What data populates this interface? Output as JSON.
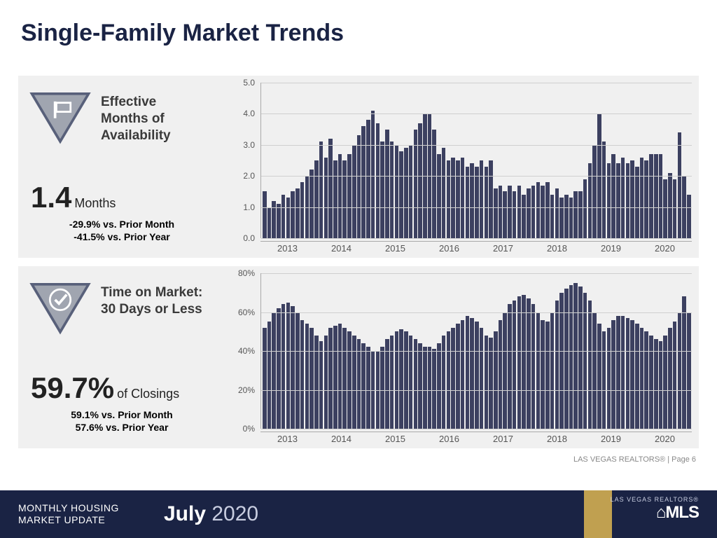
{
  "page": {
    "title": "Single-Family Market Trends",
    "title_color": "#1a2344",
    "title_fontsize": 34,
    "attribution": "LAS VEGAS REALTORS® | Page 6",
    "background_color": "#ffffff",
    "panel_background": "#f0f0f0"
  },
  "footer": {
    "line1": "MONTHLY HOUSING",
    "line2": "MARKET UPDATE",
    "month": "July",
    "year": "2020",
    "brand_small": "LAS VEGAS REALTORS®",
    "brand_large": "⌂MLS",
    "bg_color": "#1a2344",
    "accent_color": "#c0a050"
  },
  "metric1": {
    "icon": "sign-icon",
    "title_l1": "Effective",
    "title_l2": "Months of",
    "title_l3": "Availability",
    "big_value": "1.4",
    "big_unit": "Months",
    "sub1": "-29.9% vs. Prior Month",
    "sub2": "-41.5% vs. Prior Year",
    "chart": {
      "type": "bar",
      "bar_color": "#3c4060",
      "grid_color": "#cfcfcf",
      "background": "#f0f0f0",
      "ymin": 0,
      "ymax": 5,
      "ytick_step": 1,
      "ytick_labels": [
        "0.0",
        "1.0",
        "2.0",
        "3.0",
        "4.0",
        "5.0"
      ],
      "x_labels": [
        "2013",
        "2014",
        "2015",
        "2016",
        "2017",
        "2018",
        "2019",
        "2020"
      ],
      "values": [
        1.5,
        1.0,
        1.2,
        1.1,
        1.4,
        1.3,
        1.5,
        1.6,
        1.8,
        2.0,
        2.2,
        2.5,
        3.1,
        2.6,
        3.2,
        2.5,
        2.7,
        2.5,
        2.7,
        3.0,
        3.3,
        3.6,
        3.8,
        4.1,
        3.7,
        3.1,
        3.5,
        3.1,
        3.0,
        2.8,
        2.9,
        3.0,
        3.5,
        3.7,
        4.0,
        4.0,
        3.5,
        2.7,
        2.9,
        2.5,
        2.6,
        2.5,
        2.6,
        2.3,
        2.4,
        2.3,
        2.5,
        2.3,
        2.5,
        1.6,
        1.7,
        1.5,
        1.7,
        1.5,
        1.7,
        1.4,
        1.6,
        1.7,
        1.8,
        1.7,
        1.8,
        1.4,
        1.6,
        1.3,
        1.4,
        1.3,
        1.5,
        1.5,
        1.9,
        2.4,
        3.0,
        4.0,
        3.1,
        2.4,
        2.7,
        2.4,
        2.6,
        2.4,
        2.5,
        2.3,
        2.6,
        2.5,
        2.7,
        2.7,
        2.7,
        1.9,
        2.1,
        1.9,
        3.4,
        2.0,
        1.4
      ]
    }
  },
  "metric2": {
    "icon": "check-icon",
    "title_l1": "Time on Market:",
    "title_l2": "30 Days or Less",
    "big_value": "59.7%",
    "big_unit": "of Closings",
    "sub1": "59.1% vs. Prior Month",
    "sub2": "57.6% vs. Prior Year",
    "chart": {
      "type": "bar",
      "bar_color": "#3c4060",
      "grid_color": "#cfcfcf",
      "background": "#f0f0f0",
      "ymin": 0,
      "ymax": 80,
      "ytick_step": 20,
      "ytick_labels": [
        "0%",
        "20%",
        "40%",
        "60%",
        "80%"
      ],
      "x_labels": [
        "2013",
        "2014",
        "2015",
        "2016",
        "2017",
        "2018",
        "2019",
        "2020"
      ],
      "values": [
        52,
        55,
        60,
        62,
        64,
        65,
        63,
        60,
        56,
        54,
        52,
        48,
        45,
        48,
        52,
        53,
        54,
        52,
        50,
        48,
        46,
        44,
        42,
        40,
        40,
        42,
        46,
        48,
        50,
        51,
        50,
        48,
        46,
        44,
        42,
        42,
        41,
        44,
        48,
        50,
        52,
        54,
        56,
        58,
        57,
        55,
        52,
        48,
        47,
        50,
        56,
        60,
        64,
        66,
        68,
        69,
        67,
        64,
        60,
        56,
        55,
        60,
        66,
        70,
        72,
        74,
        75,
        73,
        70,
        66,
        60,
        54,
        50,
        52,
        56,
        58,
        58,
        57,
        56,
        54,
        52,
        50,
        48,
        46,
        45,
        48,
        52,
        55,
        60,
        68,
        59.7
      ]
    }
  }
}
